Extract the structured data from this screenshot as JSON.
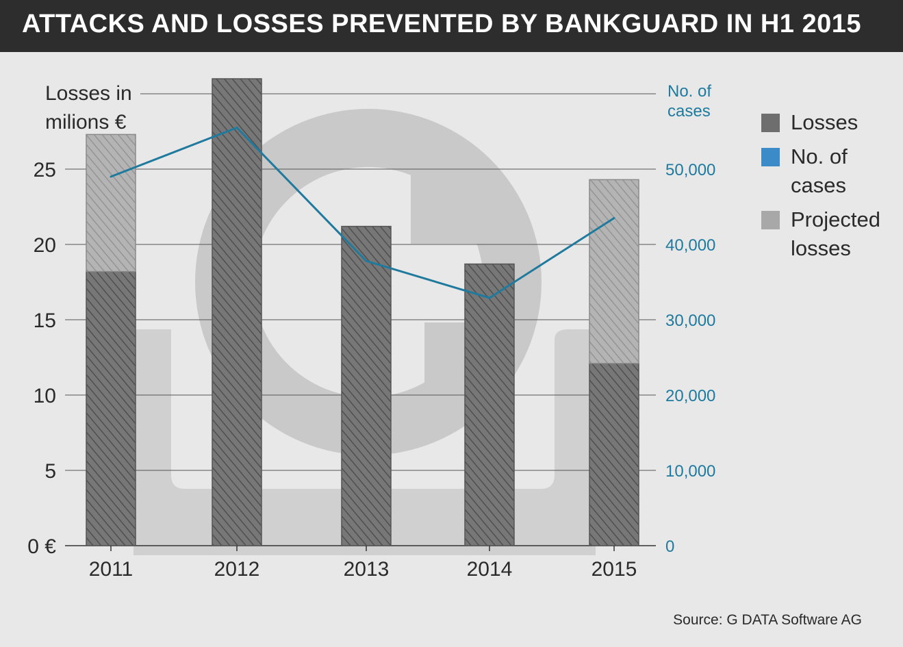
{
  "title": "ATTACKS AND LOSSES PREVENTED BY BANKGUARD IN H1 2015",
  "source": "Source: G DATA Software AG",
  "colors": {
    "background": "#e8e8e8",
    "title_bar": "#2d2d2d",
    "losses": "#6e6e6e",
    "projected": "#a8a8a8",
    "cases_line": "#1f7a9e",
    "legend_cases": "#3a8bc8",
    "right_axis_text": "#1f7a9e",
    "watermark": "#c8c8c8"
  },
  "legend": [
    {
      "label_lines": [
        "Losses"
      ],
      "swatch": "losses-swatch-icon"
    },
    {
      "label_lines": [
        "No. of",
        "cases"
      ],
      "swatch": "cases-swatch-icon"
    },
    {
      "label_lines": [
        "Projected",
        "losses"
      ],
      "swatch": "projected-swatch-icon"
    }
  ],
  "watermark_icon": "euro-coin-icon",
  "chart_data": {
    "type": "bar",
    "categories": [
      "2011",
      "2012",
      "2013",
      "2014",
      "2015"
    ],
    "series": [
      {
        "name": "Losses",
        "axis": "left",
        "values": [
          18.2,
          31.0,
          21.2,
          18.7,
          12.1
        ]
      },
      {
        "name": "Projected losses",
        "axis": "left",
        "stacked_on": "Losses",
        "values": [
          9.1,
          0,
          0,
          0,
          12.2
        ]
      },
      {
        "name": "No. of cases",
        "axis": "right",
        "type": "line",
        "values": [
          49000,
          55500,
          37800,
          32900,
          43500
        ]
      }
    ],
    "y_left": {
      "label_lines": [
        "Losses in",
        "milions €"
      ],
      "ylim": [
        0,
        30
      ],
      "ticks": [
        0,
        5,
        10,
        15,
        20,
        25
      ],
      "tick_labels": [
        "0 €",
        "5",
        "10",
        "15",
        "20",
        "25"
      ]
    },
    "y_right": {
      "label_lines": [
        "No. of",
        "cases"
      ],
      "ylim": [
        0,
        60000
      ],
      "ticks": [
        0,
        10000,
        20000,
        30000,
        40000,
        50000
      ],
      "tick_labels": [
        "0",
        "10,000",
        "20,000",
        "30,000",
        "40,000",
        "50,000"
      ]
    },
    "grid": true,
    "legend_position": "right"
  }
}
